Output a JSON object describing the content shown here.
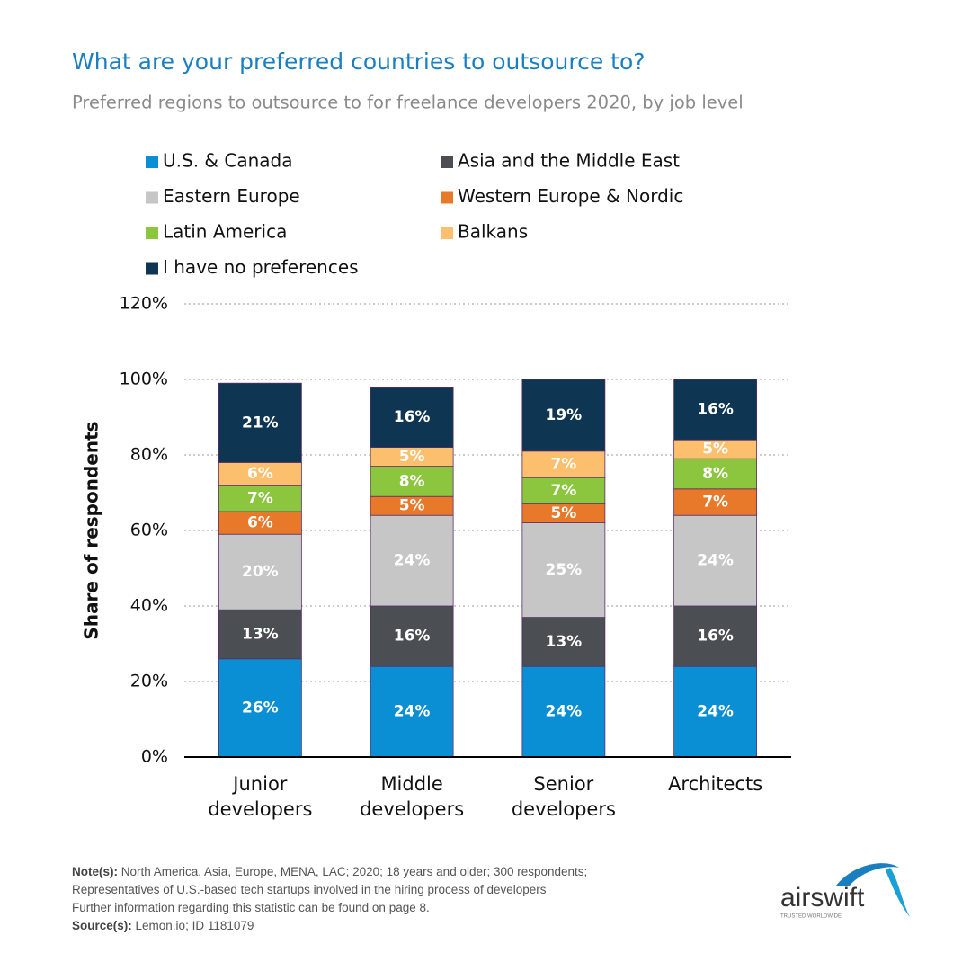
{
  "chart_data": {
    "type": "stacked-bar",
    "title": "What are your preferred countries to outsource to?",
    "subtitle": "Preferred regions to outsource to for freelance developers 2020, by job level",
    "y_label": "Share of respondents",
    "categories": [
      "Junior developers",
      "Middle developers",
      "Senior developers",
      "Architects"
    ],
    "series": [
      {
        "name": "U.S. & Canada",
        "color": "#0b8fd4",
        "values": [
          26,
          24,
          24,
          24
        ],
        "value_labels": [
          "26%",
          "24%",
          "24%",
          "24%"
        ]
      },
      {
        "name": "Asia and the Middle East",
        "color": "#4b4e52",
        "values": [
          13,
          16,
          13,
          16
        ],
        "value_labels": [
          "13%",
          "16%",
          "13%",
          "16%"
        ]
      },
      {
        "name": "Eastern Europe",
        "color": "#c6c6c6",
        "values": [
          20,
          24,
          25,
          24
        ],
        "value_labels": [
          "20%",
          "24%",
          "25%",
          "24%"
        ]
      },
      {
        "name": "Western Europe & Nordic",
        "color": "#e8792a",
        "values": [
          6,
          5,
          5,
          7
        ],
        "value_labels": [
          "6%",
          "5%",
          "5%",
          "7%"
        ]
      },
      {
        "name": "Latin America",
        "color": "#8cc63f",
        "values": [
          7,
          8,
          7,
          8
        ],
        "value_labels": [
          "7%",
          "8%",
          "7%",
          "8%"
        ]
      },
      {
        "name": "Balkans",
        "color": "#fbbf6e",
        "values": [
          6,
          5,
          7,
          5
        ],
        "value_labels": [
          "6%",
          "5%",
          "7%",
          "5%"
        ]
      },
      {
        "name": "I have no preferences",
        "color": "#0e3552",
        "values": [
          21,
          16,
          19,
          16
        ],
        "value_labels": [
          "21%",
          "16%",
          "19%",
          "16%"
        ]
      }
    ],
    "ylim": [
      0,
      120
    ],
    "yticks": [
      {
        "value": 0,
        "label": "0%"
      },
      {
        "value": 20,
        "label": "20%"
      },
      {
        "value": 40,
        "label": "40%"
      },
      {
        "value": 60,
        "label": "60%"
      },
      {
        "value": 80,
        "label": "80%"
      },
      {
        "value": 100,
        "label": "100%"
      },
      {
        "value": 120,
        "label": "120%"
      }
    ],
    "grid": true
  },
  "footer": {
    "note_label": "Note(s):",
    "note_lines": [
      "North America, Asia, Europe, MENA, LAC; 2020; 18 years and older; 300 respondents;",
      "Representatives of U.S.-based tech startups involved in the hiring process of developers"
    ],
    "further_info": "Further information regarding this statistic can be found on",
    "further_info_link": "page 8",
    "further_info_end": ".",
    "source_label": "Source(s):",
    "source": "Lemon.io;",
    "source_id": "ID 1181079"
  },
  "logo": {
    "name": "airswift",
    "tagline": "TRUSTED WORLDWIDE"
  }
}
